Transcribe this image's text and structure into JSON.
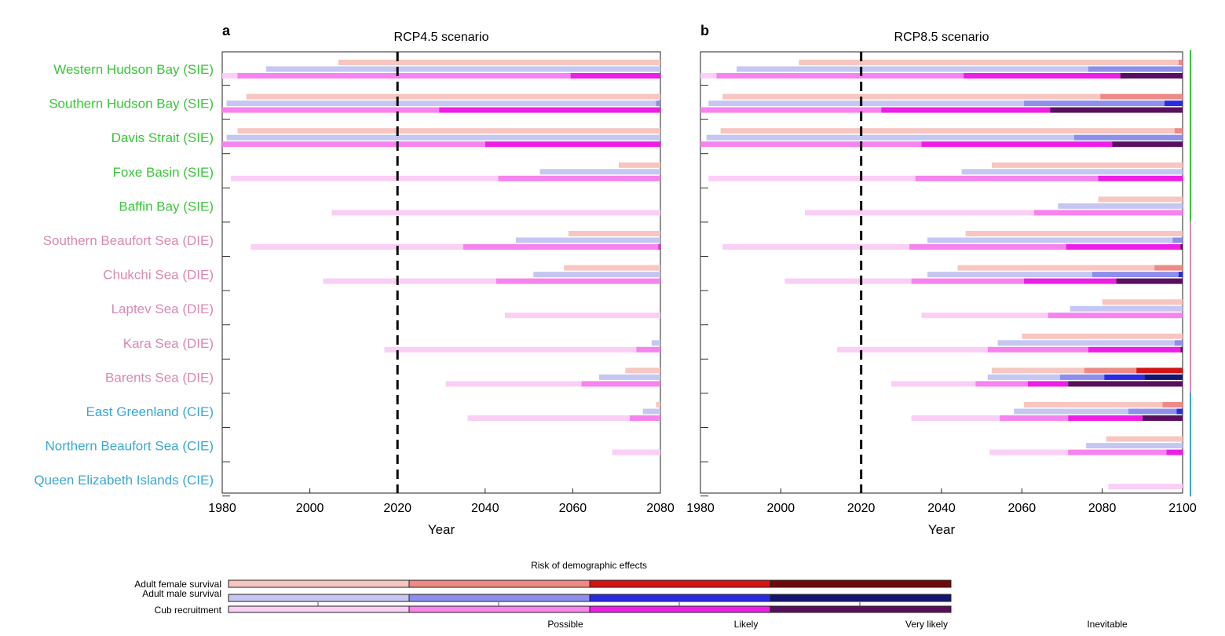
{
  "chart_data": [
    {
      "type": "bar",
      "panel_label": "a",
      "title": "RCP4.5 scenario",
      "xlabel": "Year",
      "xlim": [
        1980,
        2080
      ],
      "xticks": [
        1980,
        2000,
        2020,
        2040,
        2060,
        2080
      ],
      "reference_line": 2020,
      "categories": [
        "Western Hudson Bay (SIE)",
        "Southern Hudson Bay (SIE)",
        "Davis Strait (SIE)",
        "Foxe Basin (SIE)",
        "Baffin Bay (SIE)",
        "Southern Beaufort Sea (DIE)",
        "Chukchi Sea (DIE)",
        "Laptev Sea (DIE)",
        "Kara Sea (DIE)",
        "Barents Sea (DIE)",
        "East Greenland (CIE)",
        "Northern Beaufort Sea (CIE)",
        "Queen Elizabeth Islands (CIE)"
      ],
      "category_colors": [
        "#3bc43b",
        "#3bc43b",
        "#3bc43b",
        "#3bc43b",
        "#3bc43b",
        "#d889b4",
        "#d889b4",
        "#d889b4",
        "#d889b4",
        "#d889b4",
        "#3aa8d4",
        "#3aa8d4",
        "#3aa8d4"
      ],
      "regions": [
        {
          "f": [
            [
              2006.5,
              2080,
              1
            ]
          ],
          "m": [
            [
              1990,
              2080,
              1
            ]
          ],
          "c": [
            [
              1980,
              1983.5,
              1
            ],
            [
              1983.5,
              2059.5,
              2
            ],
            [
              2059.5,
              2080,
              3
            ]
          ]
        },
        {
          "f": [
            [
              1985.5,
              2080,
              1
            ]
          ],
          "m": [
            [
              1981,
              2079,
              1
            ],
            [
              2079,
              2080,
              2
            ]
          ],
          "c": [
            [
              1980,
              2029.5,
              2
            ],
            [
              2029.5,
              2080,
              3
            ]
          ]
        },
        {
          "f": [
            [
              1983.5,
              2080,
              1
            ]
          ],
          "m": [
            [
              1981,
              2080,
              1
            ]
          ],
          "c": [
            [
              1980,
              2040,
              2
            ],
            [
              2040,
              2080,
              3
            ]
          ]
        },
        {
          "f": [
            [
              2070.5,
              2080,
              1
            ]
          ],
          "m": [
            [
              2052.5,
              2080,
              1
            ]
          ],
          "c": [
            [
              1982,
              2043,
              1
            ],
            [
              2043,
              2080,
              2
            ]
          ]
        },
        {
          "f": [],
          "m": [],
          "c": [
            [
              2005,
              2080,
              1
            ]
          ]
        },
        {
          "f": [
            [
              2059,
              2080,
              1
            ]
          ],
          "m": [
            [
              2047,
              2080,
              1
            ]
          ],
          "c": [
            [
              1986.5,
              2035,
              1
            ],
            [
              2035,
              2079.5,
              2
            ],
            [
              2079.5,
              2080,
              3
            ]
          ]
        },
        {
          "f": [
            [
              2058,
              2080,
              1
            ]
          ],
          "m": [
            [
              2051,
              2080,
              1
            ]
          ],
          "c": [
            [
              2003,
              2042.5,
              1
            ],
            [
              2042.5,
              2080,
              2
            ]
          ]
        },
        {
          "f": [],
          "m": [],
          "c": [
            [
              2044.5,
              2080,
              1
            ]
          ]
        },
        {
          "f": [],
          "m": [
            [
              2078,
              2080,
              1
            ]
          ],
          "c": [
            [
              2017,
              2074.5,
              1
            ],
            [
              2074.5,
              2080,
              2
            ]
          ]
        },
        {
          "f": [
            [
              2072,
              2080,
              1
            ]
          ],
          "m": [
            [
              2066,
              2080,
              1
            ]
          ],
          "c": [
            [
              2031,
              2062,
              1
            ],
            [
              2062,
              2080,
              2
            ]
          ]
        },
        {
          "f": [
            [
              2079,
              2080,
              1
            ]
          ],
          "m": [
            [
              2076,
              2080,
              1
            ]
          ],
          "c": [
            [
              2036,
              2073,
              1
            ],
            [
              2073,
              2080,
              2
            ]
          ]
        },
        {
          "f": [],
          "m": [],
          "c": [
            [
              2069,
              2080,
              1
            ]
          ]
        },
        {
          "f": [],
          "m": [],
          "c": []
        }
      ]
    },
    {
      "type": "bar",
      "panel_label": "b",
      "title": "RCP8.5 scenario",
      "xlabel": "Year",
      "xlim": [
        1980,
        2100
      ],
      "xticks": [
        1980,
        2000,
        2020,
        2040,
        2060,
        2080,
        2100
      ],
      "reference_line": 2020,
      "regions": [
        {
          "f": [
            [
              2004.5,
              2099,
              1
            ],
            [
              2099,
              2100,
              2
            ]
          ],
          "m": [
            [
              1989,
              2076.5,
              1
            ],
            [
              2076.5,
              2100,
              2
            ]
          ],
          "c": [
            [
              1980,
              1984,
              1
            ],
            [
              1984,
              2045.5,
              2
            ],
            [
              2045.5,
              2084.5,
              3
            ],
            [
              2084.5,
              2100,
              4
            ]
          ]
        },
        {
          "f": [
            [
              1985.5,
              2079.5,
              1
            ],
            [
              2079.5,
              2100,
              2
            ]
          ],
          "m": [
            [
              1982,
              2060.5,
              1
            ],
            [
              2060.5,
              2095.5,
              2
            ],
            [
              2095.5,
              2100,
              3
            ]
          ],
          "c": [
            [
              1980,
              2025,
              2
            ],
            [
              2025,
              2067,
              3
            ],
            [
              2067,
              2100,
              4
            ]
          ]
        },
        {
          "f": [
            [
              1985,
              2098,
              1
            ],
            [
              2098,
              2100,
              2
            ]
          ],
          "m": [
            [
              1981.5,
              2073,
              1
            ],
            [
              2073,
              2100,
              2
            ]
          ],
          "c": [
            [
              1980,
              2035,
              2
            ],
            [
              2035,
              2082.5,
              3
            ],
            [
              2082.5,
              2100,
              4
            ]
          ]
        },
        {
          "f": [
            [
              2052.5,
              2100,
              1
            ]
          ],
          "m": [
            [
              2045,
              2100,
              1
            ]
          ],
          "c": [
            [
              1982,
              2033.5,
              1
            ],
            [
              2033.5,
              2079,
              2
            ],
            [
              2079,
              2100,
              3
            ]
          ]
        },
        {
          "f": [
            [
              2079,
              2100,
              1
            ]
          ],
          "m": [
            [
              2069,
              2100,
              1
            ]
          ],
          "c": [
            [
              2006,
              2063,
              1
            ],
            [
              2063,
              2100,
              2
            ]
          ]
        },
        {
          "f": [
            [
              2046,
              2100,
              1
            ]
          ],
          "m": [
            [
              2036.5,
              2097.5,
              1
            ],
            [
              2097.5,
              2100,
              2
            ]
          ],
          "c": [
            [
              1985.5,
              2032,
              1
            ],
            [
              2032,
              2071,
              2
            ],
            [
              2071,
              2099.5,
              3
            ],
            [
              2099.5,
              2100,
              4
            ]
          ]
        },
        {
          "f": [
            [
              2044,
              2093,
              1
            ],
            [
              2093,
              2100,
              2
            ]
          ],
          "m": [
            [
              2036.5,
              2077.5,
              1
            ],
            [
              2077.5,
              2099,
              2
            ],
            [
              2099,
              2100,
              3
            ]
          ],
          "c": [
            [
              2001,
              2032.5,
              1
            ],
            [
              2032.5,
              2060.5,
              2
            ],
            [
              2060.5,
              2083.5,
              3
            ],
            [
              2083.5,
              2100,
              4
            ]
          ]
        },
        {
          "f": [
            [
              2080,
              2100,
              1
            ]
          ],
          "m": [
            [
              2072,
              2100,
              1
            ]
          ],
          "c": [
            [
              2035,
              2066.5,
              1
            ],
            [
              2066.5,
              2100,
              2
            ]
          ]
        },
        {
          "f": [
            [
              2060,
              2100,
              1
            ]
          ],
          "m": [
            [
              2054,
              2098,
              1
            ],
            [
              2098,
              2100,
              2
            ]
          ],
          "c": [
            [
              2014,
              2051.5,
              1
            ],
            [
              2051.5,
              2076.5,
              2
            ],
            [
              2076.5,
              2099.5,
              3
            ],
            [
              2099.5,
              2100,
              4
            ]
          ]
        },
        {
          "f": [
            [
              2052.5,
              2075.5,
              1
            ],
            [
              2075.5,
              2088.5,
              2
            ],
            [
              2088.5,
              2100,
              3
            ]
          ],
          "m": [
            [
              2051.5,
              2069.5,
              1
            ],
            [
              2069.5,
              2080.5,
              2
            ],
            [
              2080.5,
              2090.5,
              3
            ],
            [
              2090.5,
              2100,
              4
            ]
          ],
          "c": [
            [
              2027.5,
              2048.5,
              1
            ],
            [
              2048.5,
              2061.5,
              2
            ],
            [
              2061.5,
              2071.5,
              3
            ],
            [
              2071.5,
              2100,
              4
            ]
          ]
        },
        {
          "f": [
            [
              2060.5,
              2095,
              1
            ],
            [
              2095,
              2100,
              2
            ]
          ],
          "m": [
            [
              2058,
              2086.5,
              1
            ],
            [
              2086.5,
              2098.5,
              2
            ],
            [
              2098.5,
              2100,
              3
            ]
          ],
          "c": [
            [
              2032.5,
              2054.5,
              1
            ],
            [
              2054.5,
              2071.5,
              2
            ],
            [
              2071.5,
              2090,
              3
            ],
            [
              2090,
              2100,
              4
            ]
          ]
        },
        {
          "f": [
            [
              2081,
              2100,
              1
            ]
          ],
          "m": [
            [
              2076,
              2100,
              1
            ]
          ],
          "c": [
            [
              2052,
              2071.5,
              1
            ],
            [
              2071.5,
              2096,
              2
            ],
            [
              2096,
              2100,
              3
            ]
          ]
        },
        {
          "f": [],
          "m": [],
          "c": [
            [
              2081.5,
              2100,
              1
            ]
          ]
        }
      ]
    }
  ],
  "colors": {
    "female": [
      "#f7c6c1",
      "#ee8a86",
      "#d41414",
      "#6e0a0a"
    ],
    "male": [
      "#c6c6f3",
      "#8e8eec",
      "#2a2ae4",
      "#141472"
    ],
    "cub": [
      "#facff6",
      "#f783ee",
      "#ee1ee6",
      "#5a0f5e"
    ]
  },
  "legend": {
    "title": "Risk of demographic effects",
    "rows": [
      "Adult female survival",
      "Adult male survival",
      "Cub recruitment"
    ],
    "levels": [
      "Possible",
      "Likely",
      "Very likely",
      "Inevitable"
    ]
  }
}
